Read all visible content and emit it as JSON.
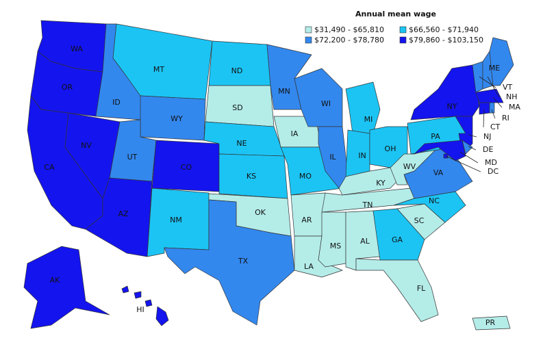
{
  "legend": {
    "title": "Annual mean wage",
    "bins": [
      {
        "label": "$31,490 - $65,810",
        "color": "#b4ece8"
      },
      {
        "label": "$66,560 - $71,940",
        "color": "#1cc4f4"
      },
      {
        "label": "$72,200 - $78,780",
        "color": "#3388ee"
      },
      {
        "label": "$79,860 - $103,150",
        "color": "#1414ee"
      }
    ]
  },
  "states": [
    {
      "abbr": "WA",
      "bin": 3
    },
    {
      "abbr": "OR",
      "bin": 3
    },
    {
      "abbr": "CA",
      "bin": 3
    },
    {
      "abbr": "NV",
      "bin": 3
    },
    {
      "abbr": "ID",
      "bin": 2
    },
    {
      "abbr": "MT",
      "bin": 1
    },
    {
      "abbr": "WY",
      "bin": 2
    },
    {
      "abbr": "UT",
      "bin": 2
    },
    {
      "abbr": "CO",
      "bin": 3
    },
    {
      "abbr": "AZ",
      "bin": 3
    },
    {
      "abbr": "NM",
      "bin": 1
    },
    {
      "abbr": "ND",
      "bin": 1
    },
    {
      "abbr": "SD",
      "bin": 0
    },
    {
      "abbr": "NE",
      "bin": 1
    },
    {
      "abbr": "KS",
      "bin": 1
    },
    {
      "abbr": "OK",
      "bin": 0
    },
    {
      "abbr": "TX",
      "bin": 2
    },
    {
      "abbr": "MN",
      "bin": 2
    },
    {
      "abbr": "IA",
      "bin": 0
    },
    {
      "abbr": "MO",
      "bin": 1
    },
    {
      "abbr": "AR",
      "bin": 0
    },
    {
      "abbr": "LA",
      "bin": 0
    },
    {
      "abbr": "WI",
      "bin": 2
    },
    {
      "abbr": "IL",
      "bin": 2
    },
    {
      "abbr": "MI",
      "bin": 1
    },
    {
      "abbr": "IN",
      "bin": 1
    },
    {
      "abbr": "OH",
      "bin": 1
    },
    {
      "abbr": "KY",
      "bin": 0
    },
    {
      "abbr": "TN",
      "bin": 0
    },
    {
      "abbr": "MS",
      "bin": 0
    },
    {
      "abbr": "AL",
      "bin": 0
    },
    {
      "abbr": "GA",
      "bin": 1
    },
    {
      "abbr": "FL",
      "bin": 0
    },
    {
      "abbr": "SC",
      "bin": 0
    },
    {
      "abbr": "NC",
      "bin": 1
    },
    {
      "abbr": "VA",
      "bin": 2
    },
    {
      "abbr": "WV",
      "bin": 0
    },
    {
      "abbr": "PA",
      "bin": 1
    },
    {
      "abbr": "NY",
      "bin": 3
    },
    {
      "abbr": "NJ",
      "bin": 3
    },
    {
      "abbr": "DE",
      "bin": 2
    },
    {
      "abbr": "MD",
      "bin": 3
    },
    {
      "abbr": "VT",
      "bin": 2
    },
    {
      "abbr": "NH",
      "bin": 2
    },
    {
      "abbr": "ME",
      "bin": 2
    },
    {
      "abbr": "MA",
      "bin": 3
    },
    {
      "abbr": "CT",
      "bin": 3
    },
    {
      "abbr": "RI",
      "bin": 2
    },
    {
      "abbr": "DC",
      "bin": 3
    },
    {
      "abbr": "AK",
      "bin": 3
    },
    {
      "abbr": "HI",
      "bin": 3
    },
    {
      "abbr": "PR",
      "bin": 0
    }
  ]
}
